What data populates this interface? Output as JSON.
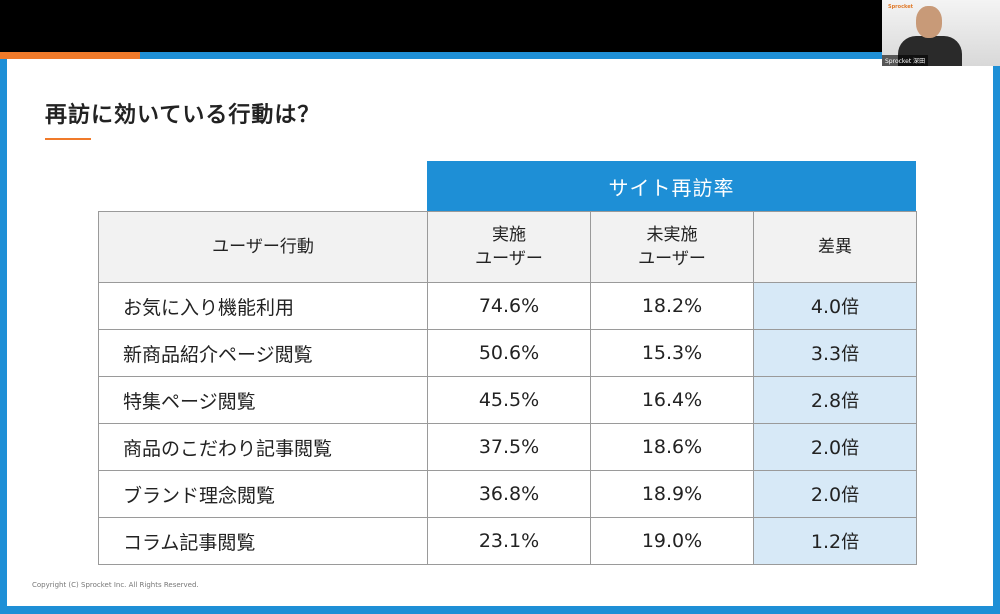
{
  "slide": {
    "title": "再訪に効いている行動は？",
    "group_header": "サイト再訪率",
    "table": {
      "headers": [
        "ユーザー行動",
        "実施\nユーザー",
        "未実施\nユーザー",
        "差異"
      ],
      "rows": [
        {
          "behavior": "お気に入り機能利用",
          "done": "74.6%",
          "not_done": "18.2%",
          "diff": "4.0",
          "unit": "倍"
        },
        {
          "behavior": "新商品紹介ページ閲覧",
          "done": "50.6%",
          "not_done": "15.3%",
          "diff": "3.3",
          "unit": "倍"
        },
        {
          "behavior": "特集ページ閲覧",
          "done": "45.5%",
          "not_done": "16.4%",
          "diff": "2.8",
          "unit": "倍"
        },
        {
          "behavior": "商品のこだわり記事閲覧",
          "done": "37.5%",
          "not_done": "18.6%",
          "diff": "2.0",
          "unit": "倍"
        },
        {
          "behavior": "ブランド理念閲覧",
          "done": "36.8%",
          "not_done": "18.9%",
          "diff": "2.0",
          "unit": "倍"
        },
        {
          "behavior": "コラム記事閲覧",
          "done": "23.1%",
          "not_done": "19.0%",
          "diff": "1.2",
          "unit": "倍"
        }
      ]
    },
    "copyright": "Copyright (C) Sprocket Inc. All Rights Reserved."
  },
  "video": {
    "logo": "Sprocket",
    "name_tag": "Sprocket 深田"
  },
  "colors": {
    "accent_blue": "#1e8fd6",
    "accent_orange": "#f07a2a",
    "diff_bg": "#d7e9f7",
    "diff_text": "#1e7fc4"
  }
}
